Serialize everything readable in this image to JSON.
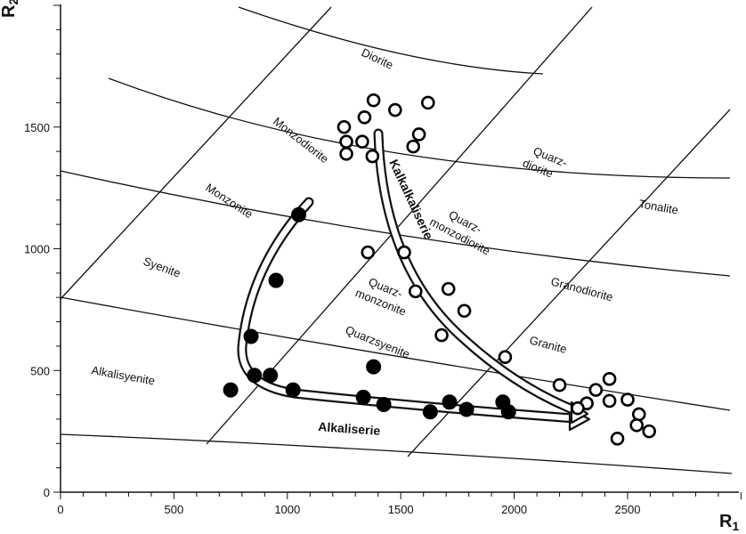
{
  "chart_data": {
    "type": "scatter",
    "x_axis": {
      "label": "R",
      "label_sub": "1",
      "range": [
        0,
        3000
      ],
      "ticks": [
        0,
        500,
        1000,
        1500,
        2000,
        2500
      ]
    },
    "y_axis": {
      "label": "R",
      "label_sub": "2",
      "range": [
        0,
        2000
      ],
      "ticks": [
        0,
        500,
        1000,
        1500
      ]
    },
    "grid": false,
    "field_labels": [
      {
        "text": "Diorite"
      },
      {
        "text": "Monzodiorite"
      },
      {
        "text": "Monzonite"
      },
      {
        "text": "Syenite"
      },
      {
        "text": "Alkalisyenite"
      },
      {
        "text": "Quarz-",
        "text2": "diorite"
      },
      {
        "text": "Tonalite"
      },
      {
        "text": "Quarz-",
        "text2": "monzodiorite"
      },
      {
        "text": "Granodiorite"
      },
      {
        "text": "Quarz-",
        "text2": "monzonite"
      },
      {
        "text": "Quarzsyenite"
      },
      {
        "text": "Granite"
      }
    ],
    "series": [
      {
        "name": "Kalkalkaliserie",
        "marker": "open-circle",
        "points": [
          [
            1380,
            1610
          ],
          [
            1475,
            1570
          ],
          [
            1620,
            1600
          ],
          [
            1340,
            1540
          ],
          [
            1250,
            1500
          ],
          [
            1580,
            1470
          ],
          [
            1260,
            1440
          ],
          [
            1330,
            1440
          ],
          [
            1555,
            1420
          ],
          [
            1260,
            1390
          ],
          [
            1375,
            1380
          ],
          [
            1355,
            985
          ],
          [
            1515,
            985
          ],
          [
            1710,
            835
          ],
          [
            1565,
            825
          ],
          [
            1780,
            745
          ],
          [
            1680,
            645
          ],
          [
            1960,
            555
          ],
          [
            2200,
            440
          ],
          [
            2420,
            465
          ],
          [
            2360,
            420
          ],
          [
            2500,
            380
          ],
          [
            2420,
            375
          ],
          [
            2320,
            365
          ],
          [
            2280,
            345
          ],
          [
            2550,
            320
          ],
          [
            2540,
            275
          ],
          [
            2595,
            250
          ],
          [
            2455,
            220
          ]
        ]
      },
      {
        "name": "Alkaliserie",
        "marker": "filled-circle",
        "points": [
          [
            1050,
            1140
          ],
          [
            950,
            870
          ],
          [
            840,
            640
          ],
          [
            1380,
            515
          ],
          [
            855,
            480
          ],
          [
            925,
            480
          ],
          [
            750,
            420
          ],
          [
            1025,
            420
          ],
          [
            1335,
            390
          ],
          [
            1425,
            360
          ],
          [
            1715,
            370
          ],
          [
            1950,
            370
          ],
          [
            1630,
            330
          ],
          [
            1790,
            340
          ],
          [
            1975,
            330
          ]
        ]
      }
    ]
  }
}
